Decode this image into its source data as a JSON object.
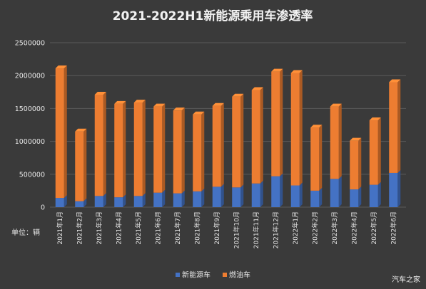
{
  "watermark": "汽车之家",
  "chart_data": {
    "type": "bar",
    "stacked": true,
    "title": "2021-2022H1新能源乘用车渗透率",
    "unit_label": "单位：辆",
    "categories": [
      "2021年1月",
      "2021年2月",
      "2021年3月",
      "2021年4月",
      "2021年5月",
      "2021年6月",
      "2021年7月",
      "2021年8月",
      "2021年9月",
      "2021年10月",
      "2021年11月",
      "2021年12月",
      "2022年1月",
      "2022年2月",
      "2022年3月",
      "2022年4月",
      "2022年5月",
      "2022年6月"
    ],
    "series": [
      {
        "name": "新能源车",
        "color": "#4472c4",
        "values": [
          140000,
          90000,
          170000,
          150000,
          170000,
          220000,
          210000,
          240000,
          310000,
          300000,
          360000,
          470000,
          330000,
          250000,
          430000,
          270000,
          340000,
          520000
        ]
      },
      {
        "name": "燃油车",
        "color": "#ed7d31",
        "values": [
          1970000,
          1060000,
          1540000,
          1420000,
          1420000,
          1310000,
          1260000,
          1170000,
          1230000,
          1380000,
          1420000,
          1590000,
          1710000,
          960000,
          1100000,
          740000,
          980000,
          1380000
        ]
      }
    ],
    "yticks": [
      0,
      500000,
      1000000,
      1500000,
      2000000,
      2500000
    ],
    "ylim": [
      0,
      2500000
    ],
    "grid": true,
    "legend_position": "bottom"
  }
}
